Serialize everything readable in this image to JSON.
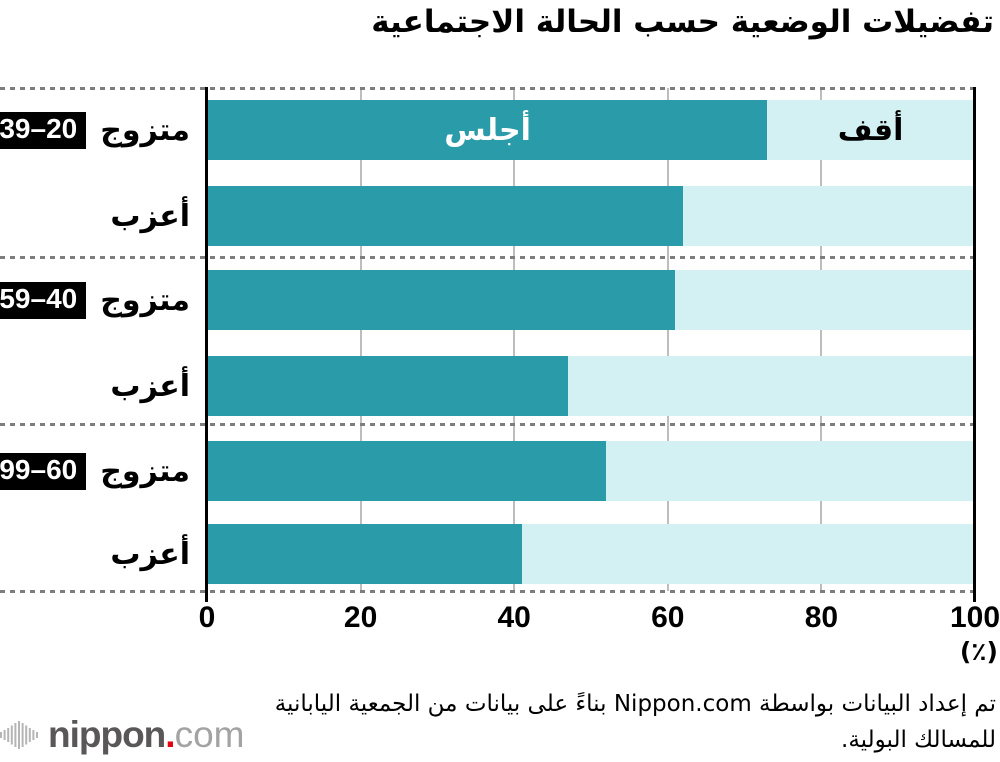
{
  "title": "تفضيلات الوضعية حسب الحالة الاجتماعية",
  "bar_labels": {
    "sit": "أجلس",
    "stand": "أقف"
  },
  "groups": [
    {
      "age_range": "39–20",
      "rows": [
        {
          "label": "متزوج",
          "sit_pct": 73
        },
        {
          "label": "أعزب",
          "sit_pct": 62
        }
      ]
    },
    {
      "age_range": "59–40",
      "rows": [
        {
          "label": "متزوج",
          "sit_pct": 61
        },
        {
          "label": "أعزب",
          "sit_pct": 47
        }
      ]
    },
    {
      "age_range": "99–60",
      "rows": [
        {
          "label": "متزوج",
          "sit_pct": 52
        },
        {
          "label": "أعزب",
          "sit_pct": 41
        }
      ]
    }
  ],
  "x_axis": {
    "ticks": [
      0,
      20,
      40,
      60,
      80,
      100
    ],
    "unit": "(٪)"
  },
  "colors": {
    "sit": "#2a9ba8",
    "stand": "#d3f0f2",
    "age_box_bg": "#000000",
    "age_box_text": "#ffffff",
    "gridline": "#bdbdbd",
    "logo_red": "#e60012",
    "logo_dark": "#595757",
    "logo_light": "#a3a3a3"
  },
  "footer": {
    "credit_line1": "تم إعداد البيانات بواسطة Nippon.com بناءً على بيانات من الجمعية اليابانية",
    "credit_line2": "للمسالك البولية.",
    "logo": {
      "nippon": "nippon",
      "dot": ".",
      "com": "com"
    }
  },
  "chart_data": {
    "type": "bar",
    "orientation": "horizontal",
    "stacked": true,
    "title": "تفضيلات الوضعية حسب الحالة الاجتماعية",
    "categories": [
      "متزوج 20–39",
      "أعزب 20–39",
      "متزوج 40–59",
      "أعزب 40–59",
      "متزوج 60–99",
      "أعزب 60–99"
    ],
    "series": [
      {
        "name": "أجلس",
        "values": [
          73,
          62,
          61,
          47,
          52,
          41
        ],
        "color": "#2a9ba8"
      },
      {
        "name": "أقف",
        "values": [
          27,
          38,
          39,
          53,
          48,
          59
        ],
        "color": "#d3f0f2"
      }
    ],
    "groups": [
      {
        "age_range": "20–39",
        "rows": [
          "متزوج",
          "أعزب"
        ]
      },
      {
        "age_range": "40–59",
        "rows": [
          "متزوج",
          "أعزب"
        ]
      },
      {
        "age_range": "60–99",
        "rows": [
          "متزوج",
          "أعزب"
        ]
      }
    ],
    "xlim": [
      0,
      100
    ],
    "x_ticks": [
      0,
      20,
      40,
      60,
      80,
      100
    ],
    "xlabel": "(٪)",
    "grid": true,
    "legend_position": "inside-first-bar",
    "group_divider_style": "dotted",
    "source": "تم إعداد البيانات بواسطة Nippon.com بناءً على بيانات من الجمعية اليابانية للمسالك البولية."
  }
}
